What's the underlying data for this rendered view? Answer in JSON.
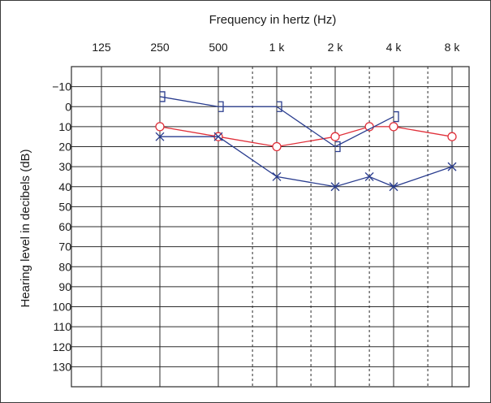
{
  "chart_data": {
    "type": "line",
    "title": "Frequency in hertz (Hz)",
    "xlabel": "",
    "ylabel": "Hearing level in decibels (dB)",
    "x_tick_labels": [
      "125",
      "250",
      "500",
      "1 k",
      "2 k",
      "4 k",
      "8 k"
    ],
    "x_values_hz": [
      125,
      250,
      500,
      1000,
      2000,
      4000,
      8000
    ],
    "interoctave_hz": [
      750,
      1500,
      3000,
      6000
    ],
    "y_tick_labels": [
      "−10",
      "0",
      "10",
      "20",
      "30",
      "40",
      "50",
      "60",
      "70",
      "80",
      "90",
      "100",
      "110",
      "120",
      "130"
    ],
    "ylim": [
      -20,
      140
    ],
    "y_inverted": true,
    "x_scale": "log2",
    "grid": true,
    "series": [
      {
        "marker": "circle",
        "color": "#e0303a",
        "x": [
          250,
          500,
          1000,
          2000,
          3000,
          4000,
          8000
        ],
        "y": [
          10,
          15,
          20,
          15,
          10,
          10,
          15
        ]
      },
      {
        "marker": "cross",
        "color": "#2a3d8f",
        "x": [
          250,
          500,
          1000,
          2000,
          3000,
          4000,
          8000
        ],
        "y": [
          15,
          15,
          35,
          40,
          35,
          40,
          30
        ]
      },
      {
        "marker": "bracket",
        "color": "#2a3d8f",
        "x": [
          250,
          500,
          1000,
          2000,
          4000
        ],
        "y": [
          -5,
          0,
          0,
          20,
          5
        ]
      }
    ]
  }
}
